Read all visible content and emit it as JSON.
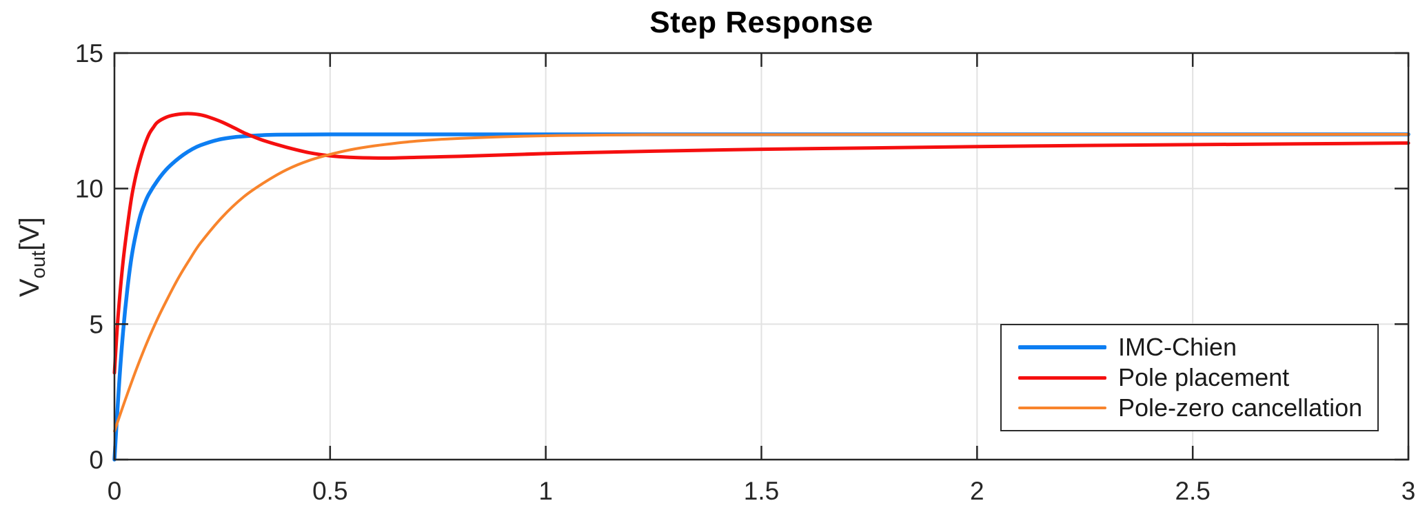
{
  "figure": {
    "background": "#ffffff"
  },
  "chart_data": {
    "type": "line",
    "title": "Step Response",
    "xlabel": "",
    "ylabel": "V_out[V]",
    "ylabel_parts": {
      "main": "V",
      "sub": "out",
      "unit": "[V]"
    },
    "xlim": [
      0,
      3
    ],
    "ylim": [
      0,
      15
    ],
    "grid": true,
    "axis_color": "#262626",
    "grid_color": "#e2e2e2",
    "tick_label_color": "#262626",
    "legend_position": "lower right",
    "xticks": [
      {
        "v": 0,
        "label": "0"
      },
      {
        "v": 0.5,
        "label": "0.5"
      },
      {
        "v": 1,
        "label": "1"
      },
      {
        "v": 1.5,
        "label": "1.5"
      },
      {
        "v": 2,
        "label": "2"
      },
      {
        "v": 2.5,
        "label": "2.5"
      },
      {
        "v": 3,
        "label": "3"
      }
    ],
    "yticks": [
      {
        "v": 0,
        "label": "0"
      },
      {
        "v": 5,
        "label": "5"
      },
      {
        "v": 10,
        "label": "10"
      },
      {
        "v": 15,
        "label": "15"
      }
    ],
    "series": [
      {
        "name": "IMC-Chien",
        "color": "#0d7ef2",
        "width": 5.5,
        "points": [
          [
            0,
            0
          ],
          [
            0.01,
            2.6
          ],
          [
            0.02,
            4.7
          ],
          [
            0.03,
            6.3
          ],
          [
            0.04,
            7.5
          ],
          [
            0.05,
            8.35
          ],
          [
            0.06,
            9.0
          ],
          [
            0.07,
            9.45
          ],
          [
            0.08,
            9.8
          ],
          [
            0.1,
            10.3
          ],
          [
            0.12,
            10.7
          ],
          [
            0.14,
            11.0
          ],
          [
            0.16,
            11.25
          ],
          [
            0.18,
            11.45
          ],
          [
            0.2,
            11.6
          ],
          [
            0.24,
            11.8
          ],
          [
            0.28,
            11.9
          ],
          [
            0.32,
            11.95
          ],
          [
            0.36,
            11.98
          ],
          [
            0.4,
            11.99
          ],
          [
            0.5,
            12
          ],
          [
            0.75,
            12
          ],
          [
            1,
            12
          ],
          [
            1.5,
            12
          ],
          [
            2,
            12
          ],
          [
            2.5,
            12
          ],
          [
            3,
            12
          ]
        ]
      },
      {
        "name": "Pole placement",
        "color": "#f50f0f",
        "width": 5,
        "points": [
          [
            0,
            3.2
          ],
          [
            0.005,
            4.5
          ],
          [
            0.01,
            5.6
          ],
          [
            0.02,
            7.3
          ],
          [
            0.03,
            8.6
          ],
          [
            0.04,
            9.7
          ],
          [
            0.05,
            10.5
          ],
          [
            0.06,
            11.1
          ],
          [
            0.07,
            11.6
          ],
          [
            0.08,
            12.0
          ],
          [
            0.09,
            12.25
          ],
          [
            0.1,
            12.45
          ],
          [
            0.12,
            12.63
          ],
          [
            0.14,
            12.72
          ],
          [
            0.16,
            12.76
          ],
          [
            0.18,
            12.76
          ],
          [
            0.2,
            12.72
          ],
          [
            0.22,
            12.63
          ],
          [
            0.25,
            12.45
          ],
          [
            0.28,
            12.22
          ],
          [
            0.3,
            12.06
          ],
          [
            0.32,
            11.93
          ],
          [
            0.35,
            11.75
          ],
          [
            0.4,
            11.52
          ],
          [
            0.45,
            11.33
          ],
          [
            0.5,
            11.21
          ],
          [
            0.55,
            11.15
          ],
          [
            0.6,
            11.13
          ],
          [
            0.65,
            11.13
          ],
          [
            0.7,
            11.15
          ],
          [
            0.8,
            11.19
          ],
          [
            0.9,
            11.24
          ],
          [
            1,
            11.29
          ],
          [
            1.1,
            11.33
          ],
          [
            1.25,
            11.38
          ],
          [
            1.5,
            11.45
          ],
          [
            1.75,
            11.5
          ],
          [
            2,
            11.55
          ],
          [
            2.25,
            11.59
          ],
          [
            2.5,
            11.62
          ],
          [
            2.75,
            11.65
          ],
          [
            3,
            11.68
          ]
        ]
      },
      {
        "name": "Pole-zero cancellation",
        "color": "#f8842c",
        "width": 4,
        "points": [
          [
            0,
            1.05
          ],
          [
            0.025,
            2.2
          ],
          [
            0.05,
            3.3
          ],
          [
            0.075,
            4.3
          ],
          [
            0.1,
            5.2
          ],
          [
            0.125,
            6.0
          ],
          [
            0.15,
            6.75
          ],
          [
            0.175,
            7.4
          ],
          [
            0.2,
            8.0
          ],
          [
            0.25,
            8.95
          ],
          [
            0.3,
            9.7
          ],
          [
            0.35,
            10.25
          ],
          [
            0.4,
            10.7
          ],
          [
            0.45,
            11.03
          ],
          [
            0.5,
            11.26
          ],
          [
            0.55,
            11.44
          ],
          [
            0.6,
            11.57
          ],
          [
            0.65,
            11.67
          ],
          [
            0.7,
            11.75
          ],
          [
            0.75,
            11.81
          ],
          [
            0.8,
            11.85
          ],
          [
            0.9,
            11.91
          ],
          [
            1,
            11.95
          ],
          [
            1.1,
            11.97
          ],
          [
            1.25,
            11.99
          ],
          [
            1.5,
            11.99
          ],
          [
            2,
            12
          ],
          [
            2.5,
            12
          ],
          [
            3,
            12
          ]
        ]
      }
    ]
  }
}
